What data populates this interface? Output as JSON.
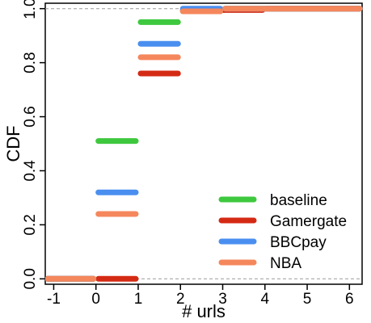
{
  "chart_data": {
    "type": "line",
    "step": true,
    "xlabel": "# urls",
    "ylabel": "CDF",
    "xlim": [
      -1.2,
      6.3
    ],
    "ylim": [
      -0.02,
      1.02
    ],
    "x_ticks": [
      -1,
      0,
      1,
      2,
      3,
      4,
      5,
      6
    ],
    "x_tick_labels": [
      "-1",
      "0",
      "1",
      "2",
      "3",
      "4",
      "5",
      "6"
    ],
    "y_ticks": [
      0.0,
      0.2,
      0.4,
      0.6,
      0.8,
      1.0
    ],
    "y_tick_labels": [
      "0.0",
      "0.2",
      "0.4",
      "0.6",
      "0.8",
      "1.0"
    ],
    "reference_lines": [
      0,
      1
    ],
    "grid": false,
    "legend_position": "bottom-right",
    "series": [
      {
        "name": "baseline",
        "color": "#3ec83e",
        "steps": [
          {
            "x0": -1.2,
            "x1": 0,
            "y": 0.0
          },
          {
            "x0": 0,
            "x1": 1,
            "y": 0.51
          },
          {
            "x0": 1,
            "x1": 2,
            "y": 0.95
          },
          {
            "x0": 2,
            "x1": 3,
            "y": 0.99
          },
          {
            "x0": 3,
            "x1": 6.3,
            "y": 1.0
          }
        ]
      },
      {
        "name": "Gamergate",
        "color": "#d42a14",
        "steps": [
          {
            "x0": -1.2,
            "x1": 0,
            "y": 0.0
          },
          {
            "x0": 0,
            "x1": 1,
            "y": 0.0
          },
          {
            "x0": 1,
            "x1": 2,
            "y": 0.76
          },
          {
            "x0": 2,
            "x1": 4,
            "y": 0.995
          },
          {
            "x0": 4,
            "x1": 6.3,
            "y": 1.0
          }
        ]
      },
      {
        "name": "BBCpay",
        "color": "#4a8ff0",
        "steps": [
          {
            "x0": -1.2,
            "x1": 0,
            "y": 0.0
          },
          {
            "x0": 0,
            "x1": 1,
            "y": 0.32
          },
          {
            "x0": 1,
            "x1": 2,
            "y": 0.87
          },
          {
            "x0": 2,
            "x1": 3,
            "y": 1.0
          },
          {
            "x0": 3,
            "x1": 6.3,
            "y": 1.0
          }
        ]
      },
      {
        "name": "NBA",
        "color": "#f5875c",
        "steps": [
          {
            "x0": -1.2,
            "x1": 0,
            "y": 0.0
          },
          {
            "x0": 0,
            "x1": 1,
            "y": 0.24
          },
          {
            "x0": 1,
            "x1": 2,
            "y": 0.82
          },
          {
            "x0": 2,
            "x1": 3,
            "y": 0.99
          },
          {
            "x0": 3,
            "x1": 6.3,
            "y": 1.0
          }
        ]
      }
    ]
  }
}
